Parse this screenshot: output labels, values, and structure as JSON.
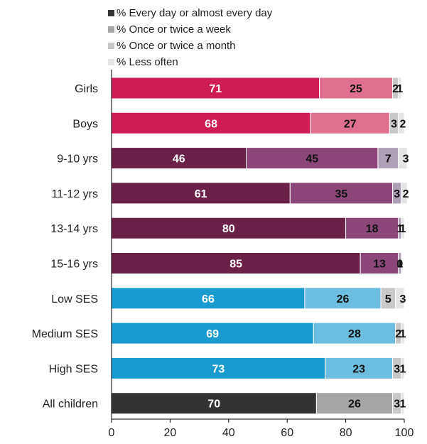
{
  "chart_data": {
    "type": "bar",
    "orientation": "horizontal",
    "stacked": true,
    "categories": [
      "Girls",
      "Boys",
      "9-10 yrs",
      "11-12 yrs",
      "13-14 yrs",
      "15-16 yrs",
      "Low SES",
      "Medium SES",
      "High SES",
      "All children"
    ],
    "series": [
      {
        "name": "% Every day or almost every day",
        "values": [
          71,
          68,
          46,
          61,
          80,
          85,
          66,
          69,
          73,
          70
        ]
      },
      {
        "name": "% Once or twice a week",
        "values": [
          25,
          27,
          45,
          35,
          18,
          13,
          26,
          28,
          23,
          26
        ]
      },
      {
        "name": "% Once or twice a month",
        "values": [
          2,
          3,
          7,
          3,
          1,
          1,
          5,
          2,
          3,
          3
        ]
      },
      {
        "name": "% Less often",
        "values": [
          1,
          2,
          3,
          2,
          1,
          0,
          3,
          1,
          1,
          1
        ]
      }
    ],
    "xlim": [
      0,
      100
    ],
    "xticks": [
      0,
      20,
      40,
      60,
      80,
      100
    ],
    "legend_position": "top",
    "legend_colors": [
      "#333333",
      "#a6a6a6",
      "#c8c8c8",
      "#e4e4e4"
    ],
    "bar_colors": [
      [
        "#d01c55",
        "#e0708f",
        "#c8c8c8",
        "#e4e4e4"
      ],
      [
        "#d01c55",
        "#e0708f",
        "#c8c8c8",
        "#e4e4e4"
      ],
      [
        "#6b2048",
        "#8c4677",
        "#b0a0b6",
        "#e4e4e4"
      ],
      [
        "#6b2048",
        "#8c4677",
        "#b0a0b6",
        "#e4e4e4"
      ],
      [
        "#6b2048",
        "#8c4677",
        "#b0a0b6",
        "#e4e4e4"
      ],
      [
        "#6b2048",
        "#8c4677",
        "#b0a0b6",
        "#e4e4e4"
      ],
      [
        "#1a9bd0",
        "#6cbde0",
        "#c8c8c8",
        "#e4e4e4"
      ],
      [
        "#1a9bd0",
        "#6cbde0",
        "#c8c8c8",
        "#e4e4e4"
      ],
      [
        "#1a9bd0",
        "#6cbde0",
        "#c8c8c8",
        "#e4e4e4"
      ],
      [
        "#333333",
        "#a6a6a6",
        "#c8c8c8",
        "#e4e4e4"
      ]
    ],
    "label_colors": [
      "#ffffff",
      "#111111",
      "#111111",
      "#111111"
    ]
  }
}
